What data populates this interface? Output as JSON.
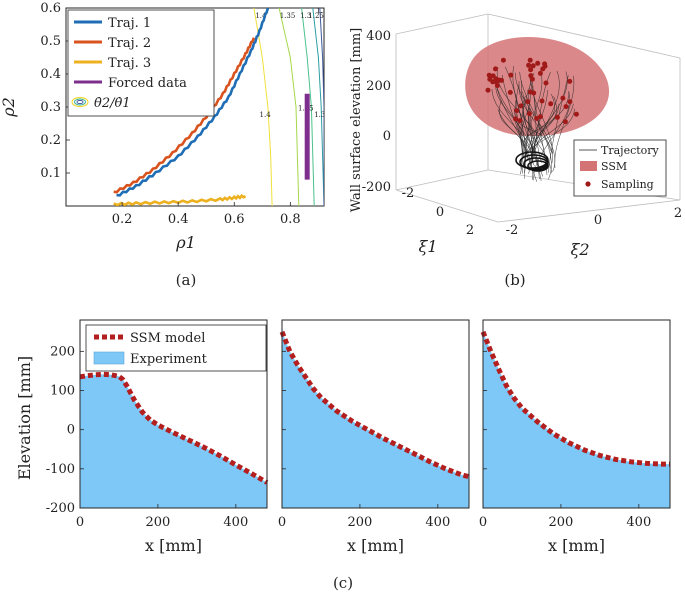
{
  "captions": {
    "a": "(a)",
    "b": "(b)",
    "c": "(c)"
  },
  "colors": {
    "traj1": "#1f6eb5",
    "traj2": "#d9531e",
    "traj3": "#edb120",
    "forced": "#7e2f8e",
    "ssm": "#d47374",
    "sampling": "#a11a1a",
    "trajectory": "#222222",
    "experiment": "#7ec8f8",
    "ssm_model": "#b31f1f"
  },
  "chart_data": [
    {
      "id": "a",
      "type": "line",
      "xlabel": "ρ1",
      "ylabel": "ρ2",
      "xlim": [
        0,
        0.92
      ],
      "ylim": [
        0,
        0.6
      ],
      "xticks": [
        0.2,
        0.4,
        0.6,
        0.8
      ],
      "yticks": [
        0.1,
        0.2,
        0.3,
        0.4,
        0.5,
        0.6
      ],
      "series": [
        {
          "name": "Traj. 1",
          "color": "#1f6eb5",
          "x": [
            0.18,
            0.25,
            0.32,
            0.4,
            0.47,
            0.53,
            0.58,
            0.62,
            0.66,
            0.69,
            0.72
          ],
          "y": [
            0.03,
            0.06,
            0.1,
            0.15,
            0.21,
            0.27,
            0.33,
            0.4,
            0.47,
            0.53,
            0.6
          ]
        },
        {
          "name": "Traj. 2",
          "color": "#d9531e",
          "x": [
            0.17,
            0.24,
            0.31,
            0.38,
            0.45,
            0.51,
            0.56,
            0.6,
            0.64,
            0.67
          ],
          "y": [
            0.04,
            0.07,
            0.11,
            0.16,
            0.22,
            0.28,
            0.34,
            0.4,
            0.46,
            0.51
          ]
        },
        {
          "name": "Traj. 3",
          "color": "#edb120",
          "x": [
            0.17,
            0.25,
            0.35,
            0.45,
            0.55,
            0.6,
            0.64
          ],
          "y": [
            0.005,
            0.008,
            0.011,
            0.014,
            0.02,
            0.025,
            0.03
          ]
        },
        {
          "name": "Forced data",
          "color": "#7e2f8e",
          "x": [
            0.86,
            0.86,
            0.86,
            0.86
          ],
          "y": [
            0.08,
            0.17,
            0.25,
            0.34
          ]
        }
      ],
      "contour_legend": "θ̇2/θ̇1",
      "contour_labels": [
        "1.2",
        "1.25",
        "1.3",
        "1.35",
        "1.4"
      ],
      "contour_inline_labels": [
        "1.4",
        "1.35",
        "1.3",
        "1.25",
        "1.2",
        "1.4",
        "1.35",
        "1.3"
      ]
    },
    {
      "id": "b",
      "type": "scatter",
      "zlabel": "Wall surface elevation [mm]",
      "xlabel": "ξ1",
      "ylabel": "ξ2",
      "zlim": [
        -200,
        400
      ],
      "zticks": [
        -200,
        0,
        200,
        400
      ],
      "xi1_ticks": [
        -2,
        0,
        2
      ],
      "xi2_ticks": [
        -2,
        0,
        2
      ],
      "legend": [
        "Trajectory",
        "SSM",
        "Sampling"
      ]
    },
    {
      "id": "c",
      "type": "area",
      "ylabel": "Elevation [mm]",
      "xlabel": "x [mm]",
      "xlim": [
        0,
        480
      ],
      "ylim": [
        -200,
        280
      ],
      "xticks": [
        0,
        200,
        400
      ],
      "yticks": [
        -200,
        -100,
        0,
        100,
        200
      ],
      "legend": [
        "SSM model",
        "Experiment"
      ],
      "panels": [
        {
          "x": [
            0,
            20,
            40,
            60,
            80,
            100,
            110,
            120,
            140,
            160,
            180,
            200,
            240,
            280,
            320,
            360,
            400,
            440,
            480
          ],
          "y": [
            135,
            138,
            140,
            141,
            140,
            136,
            128,
            112,
            75,
            45,
            25,
            12,
            -8,
            -27,
            -46,
            -67,
            -90,
            -112,
            -135
          ]
        },
        {
          "x": [
            0,
            20,
            40,
            60,
            80,
            100,
            140,
            180,
            220,
            260,
            300,
            340,
            380,
            420,
            460,
            480
          ],
          "y": [
            250,
            200,
            165,
            135,
            105,
            82,
            48,
            22,
            0,
            -22,
            -42,
            -62,
            -82,
            -100,
            -115,
            -120
          ]
        },
        {
          "x": [
            0,
            20,
            40,
            60,
            80,
            100,
            140,
            180,
            220,
            260,
            300,
            340,
            380,
            420,
            460,
            480
          ],
          "y": [
            250,
            200,
            155,
            112,
            80,
            55,
            20,
            -10,
            -33,
            -52,
            -66,
            -76,
            -82,
            -86,
            -88,
            -88
          ]
        }
      ]
    }
  ]
}
